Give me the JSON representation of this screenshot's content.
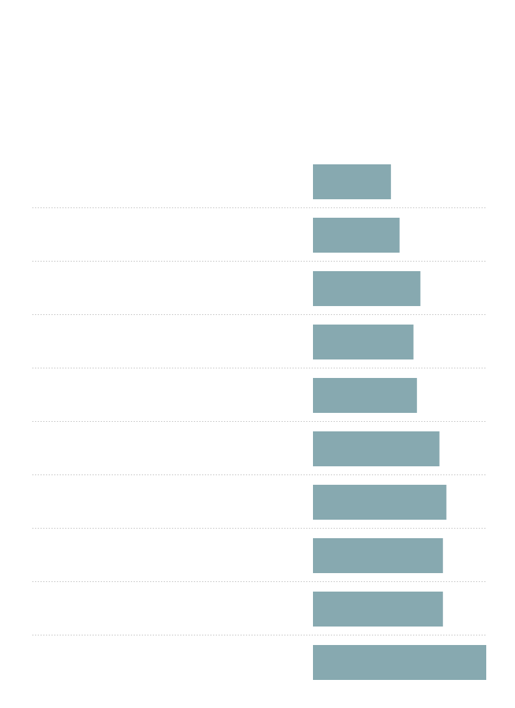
{
  "chart_data": {
    "type": "barh",
    "categories": [
      null,
      null,
      null,
      null,
      null,
      null,
      null,
      null,
      null,
      null
    ],
    "values": [
      45,
      50,
      62,
      58,
      60,
      73,
      77,
      75,
      75,
      100
    ],
    "color": "#87a9b0",
    "xlim": [
      0,
      100
    ]
  }
}
